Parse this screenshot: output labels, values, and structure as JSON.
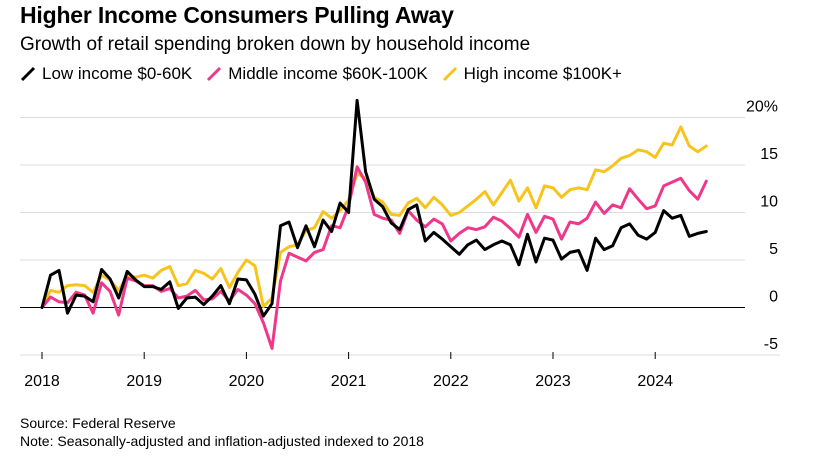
{
  "chart_data": {
    "type": "line",
    "title": "Higher Income Consumers Pulling Away",
    "subtitle": "Growth of retail spending broken down by household income",
    "xlabel": "",
    "ylabel": "",
    "ylim": [
      -5,
      20
    ],
    "yticks": [
      -5,
      0,
      5,
      10,
      15,
      20
    ],
    "ytick_labels": [
      "-5",
      "0",
      "5",
      "10",
      "15",
      "20%"
    ],
    "xticks": [
      2018,
      2019,
      2020,
      2021,
      2022,
      2023,
      2024
    ],
    "xtick_labels": [
      "2018",
      "2019",
      "2020",
      "2021",
      "2022",
      "2023",
      "2024"
    ],
    "x_start": 2018.0,
    "x_step_months": 1,
    "series": [
      {
        "name": "Low income $0-60K",
        "color": "#000000",
        "values": [
          0.0,
          3.4,
          3.9,
          -0.6,
          1.3,
          1.2,
          0.6,
          4.0,
          3.0,
          1.0,
          3.8,
          2.9,
          2.2,
          2.2,
          1.9,
          2.7,
          -0.1,
          1.0,
          1.1,
          0.3,
          1.2,
          2.3,
          0.4,
          3.0,
          2.9,
          1.4,
          -0.9,
          0.4,
          8.6,
          9.0,
          6.3,
          8.6,
          6.4,
          9.2,
          8.0,
          11.0,
          10.0,
          21.8,
          14.3,
          11.4,
          10.6,
          8.9,
          8.2,
          10.3,
          10.8,
          7.0,
          7.9,
          7.2,
          6.4,
          5.6,
          6.6,
          7.1,
          6.1,
          6.6,
          7.0,
          6.6,
          4.5,
          7.7,
          4.8,
          7.3,
          7.1,
          5.1,
          5.8,
          6.0,
          3.9,
          7.3,
          6.1,
          6.5,
          8.4,
          8.8,
          7.6,
          7.2,
          7.9,
          10.2,
          9.4,
          9.7,
          7.5,
          7.8,
          8.0
        ]
      },
      {
        "name": "Middle income $60K-100K",
        "color": "#f0388a",
        "values": [
          0.0,
          1.1,
          0.6,
          0.5,
          1.6,
          1.3,
          -0.6,
          2.6,
          1.7,
          -0.8,
          3.1,
          2.8,
          2.3,
          2.3,
          1.7,
          2.0,
          1.0,
          1.2,
          1.8,
          0.8,
          0.9,
          1.7,
          0.7,
          1.9,
          1.3,
          0.4,
          -1.6,
          -4.3,
          2.8,
          5.7,
          5.3,
          4.9,
          5.8,
          6.1,
          8.6,
          8.4,
          10.7,
          14.8,
          13.2,
          9.8,
          9.4,
          9.2,
          7.8,
          10.2,
          9.2,
          8.5,
          9.3,
          8.8,
          7.0,
          7.8,
          8.4,
          8.2,
          8.5,
          9.5,
          9.1,
          8.3,
          7.4,
          9.8,
          7.9,
          9.6,
          9.3,
          7.2,
          9.0,
          8.8,
          9.4,
          11.1,
          9.9,
          10.8,
          10.5,
          12.5,
          11.4,
          10.4,
          10.7,
          12.8,
          13.2,
          13.6,
          12.3,
          11.4,
          13.3
        ]
      },
      {
        "name": "High income $100K+",
        "color": "#f7c41e",
        "values": [
          0.0,
          1.8,
          1.6,
          2.3,
          2.4,
          2.3,
          1.6,
          3.4,
          2.9,
          1.8,
          3.3,
          3.2,
          3.4,
          3.1,
          3.9,
          4.3,
          2.3,
          2.5,
          3.9,
          3.6,
          3.0,
          4.1,
          2.1,
          3.7,
          5.0,
          4.4,
          0.1,
          1.0,
          5.8,
          6.4,
          6.6,
          8.1,
          8.4,
          10.1,
          9.4,
          10.2,
          11.3,
          14.1,
          13.6,
          11.6,
          11.1,
          9.8,
          9.7,
          11.0,
          11.5,
          10.5,
          11.6,
          10.8,
          9.7,
          10.0,
          10.7,
          11.4,
          12.2,
          10.8,
          12.1,
          13.4,
          11.2,
          12.6,
          10.5,
          12.8,
          12.6,
          11.6,
          12.4,
          12.6,
          12.4,
          14.5,
          14.3,
          14.9,
          15.7,
          16.0,
          16.6,
          16.4,
          15.8,
          17.3,
          17.1,
          19.0,
          17.0,
          16.4,
          17.0
        ]
      }
    ],
    "source": "Source: Federal Reserve",
    "note": "Note: Seasonally-adjusted and inflation-adjusted indexed to 2018"
  }
}
